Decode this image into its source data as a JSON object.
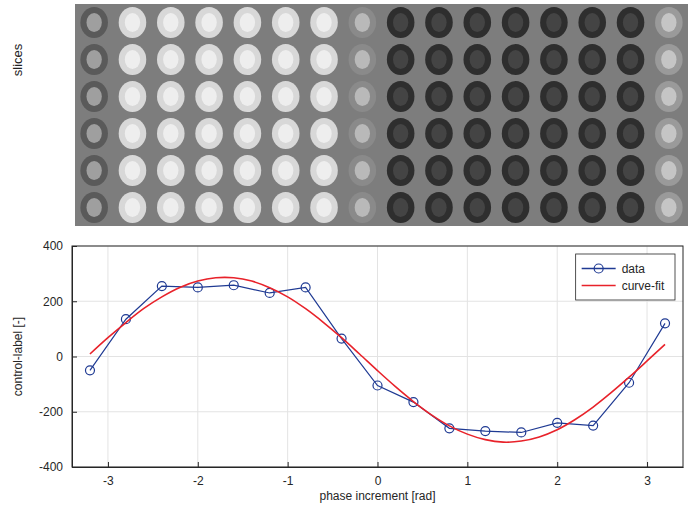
{
  "chart_data": {
    "type": "line",
    "x_label": "phase increment [rad]",
    "y_label": "control-label [-]",
    "xlim": [
      -3.4,
      3.4
    ],
    "xticks": [
      -3,
      -2,
      -1,
      0,
      1,
      2,
      3
    ],
    "ylim": [
      -400,
      400
    ],
    "yticks": [
      -400,
      -200,
      0,
      200,
      400
    ],
    "grid": true,
    "legend": "top-right",
    "series": [
      {
        "name": "data",
        "color": "#1f3a93",
        "marker": "circle",
        "line_style": "solid",
        "x": [
          -3.2,
          -2.8,
          -2.4,
          -2.0,
          -1.6,
          -1.2,
          -0.8,
          -0.4,
          0,
          0.4,
          0.8,
          1.2,
          1.6,
          2.0,
          2.4,
          2.8,
          3.2
        ],
        "values": [
          -50,
          135,
          255,
          250,
          258,
          230,
          250,
          65,
          -105,
          -165,
          -260,
          -270,
          -275,
          -240,
          -250,
          -95,
          120
        ]
      },
      {
        "name": "curve-fit",
        "color": "#e8222a",
        "marker": "none",
        "line_style": "solid",
        "x": [
          -3.2,
          -3.0,
          -2.8,
          -2.6,
          -2.4,
          -2.2,
          -2.0,
          -1.8,
          -1.6,
          -1.4,
          -1.2,
          -1.0,
          -0.8,
          -0.6,
          -0.4,
          -0.2,
          0,
          0.2,
          0.4,
          0.6,
          0.8,
          1.0,
          1.2,
          1.4,
          1.6,
          1.8,
          2.0,
          2.2,
          2.4,
          2.6,
          2.8,
          3.0,
          3.2
        ],
        "values": [
          9,
          68,
          123,
          174,
          216,
          250,
          273,
          285,
          285,
          273,
          249,
          216,
          173,
          123,
          68,
          9,
          -51,
          -109,
          -163,
          -211,
          -251,
          -281,
          -301,
          -310,
          -306,
          -291,
          -265,
          -228,
          -183,
          -131,
          -75,
          -16,
          44
        ]
      }
    ]
  },
  "image_panel": {
    "label": "slices"
  }
}
